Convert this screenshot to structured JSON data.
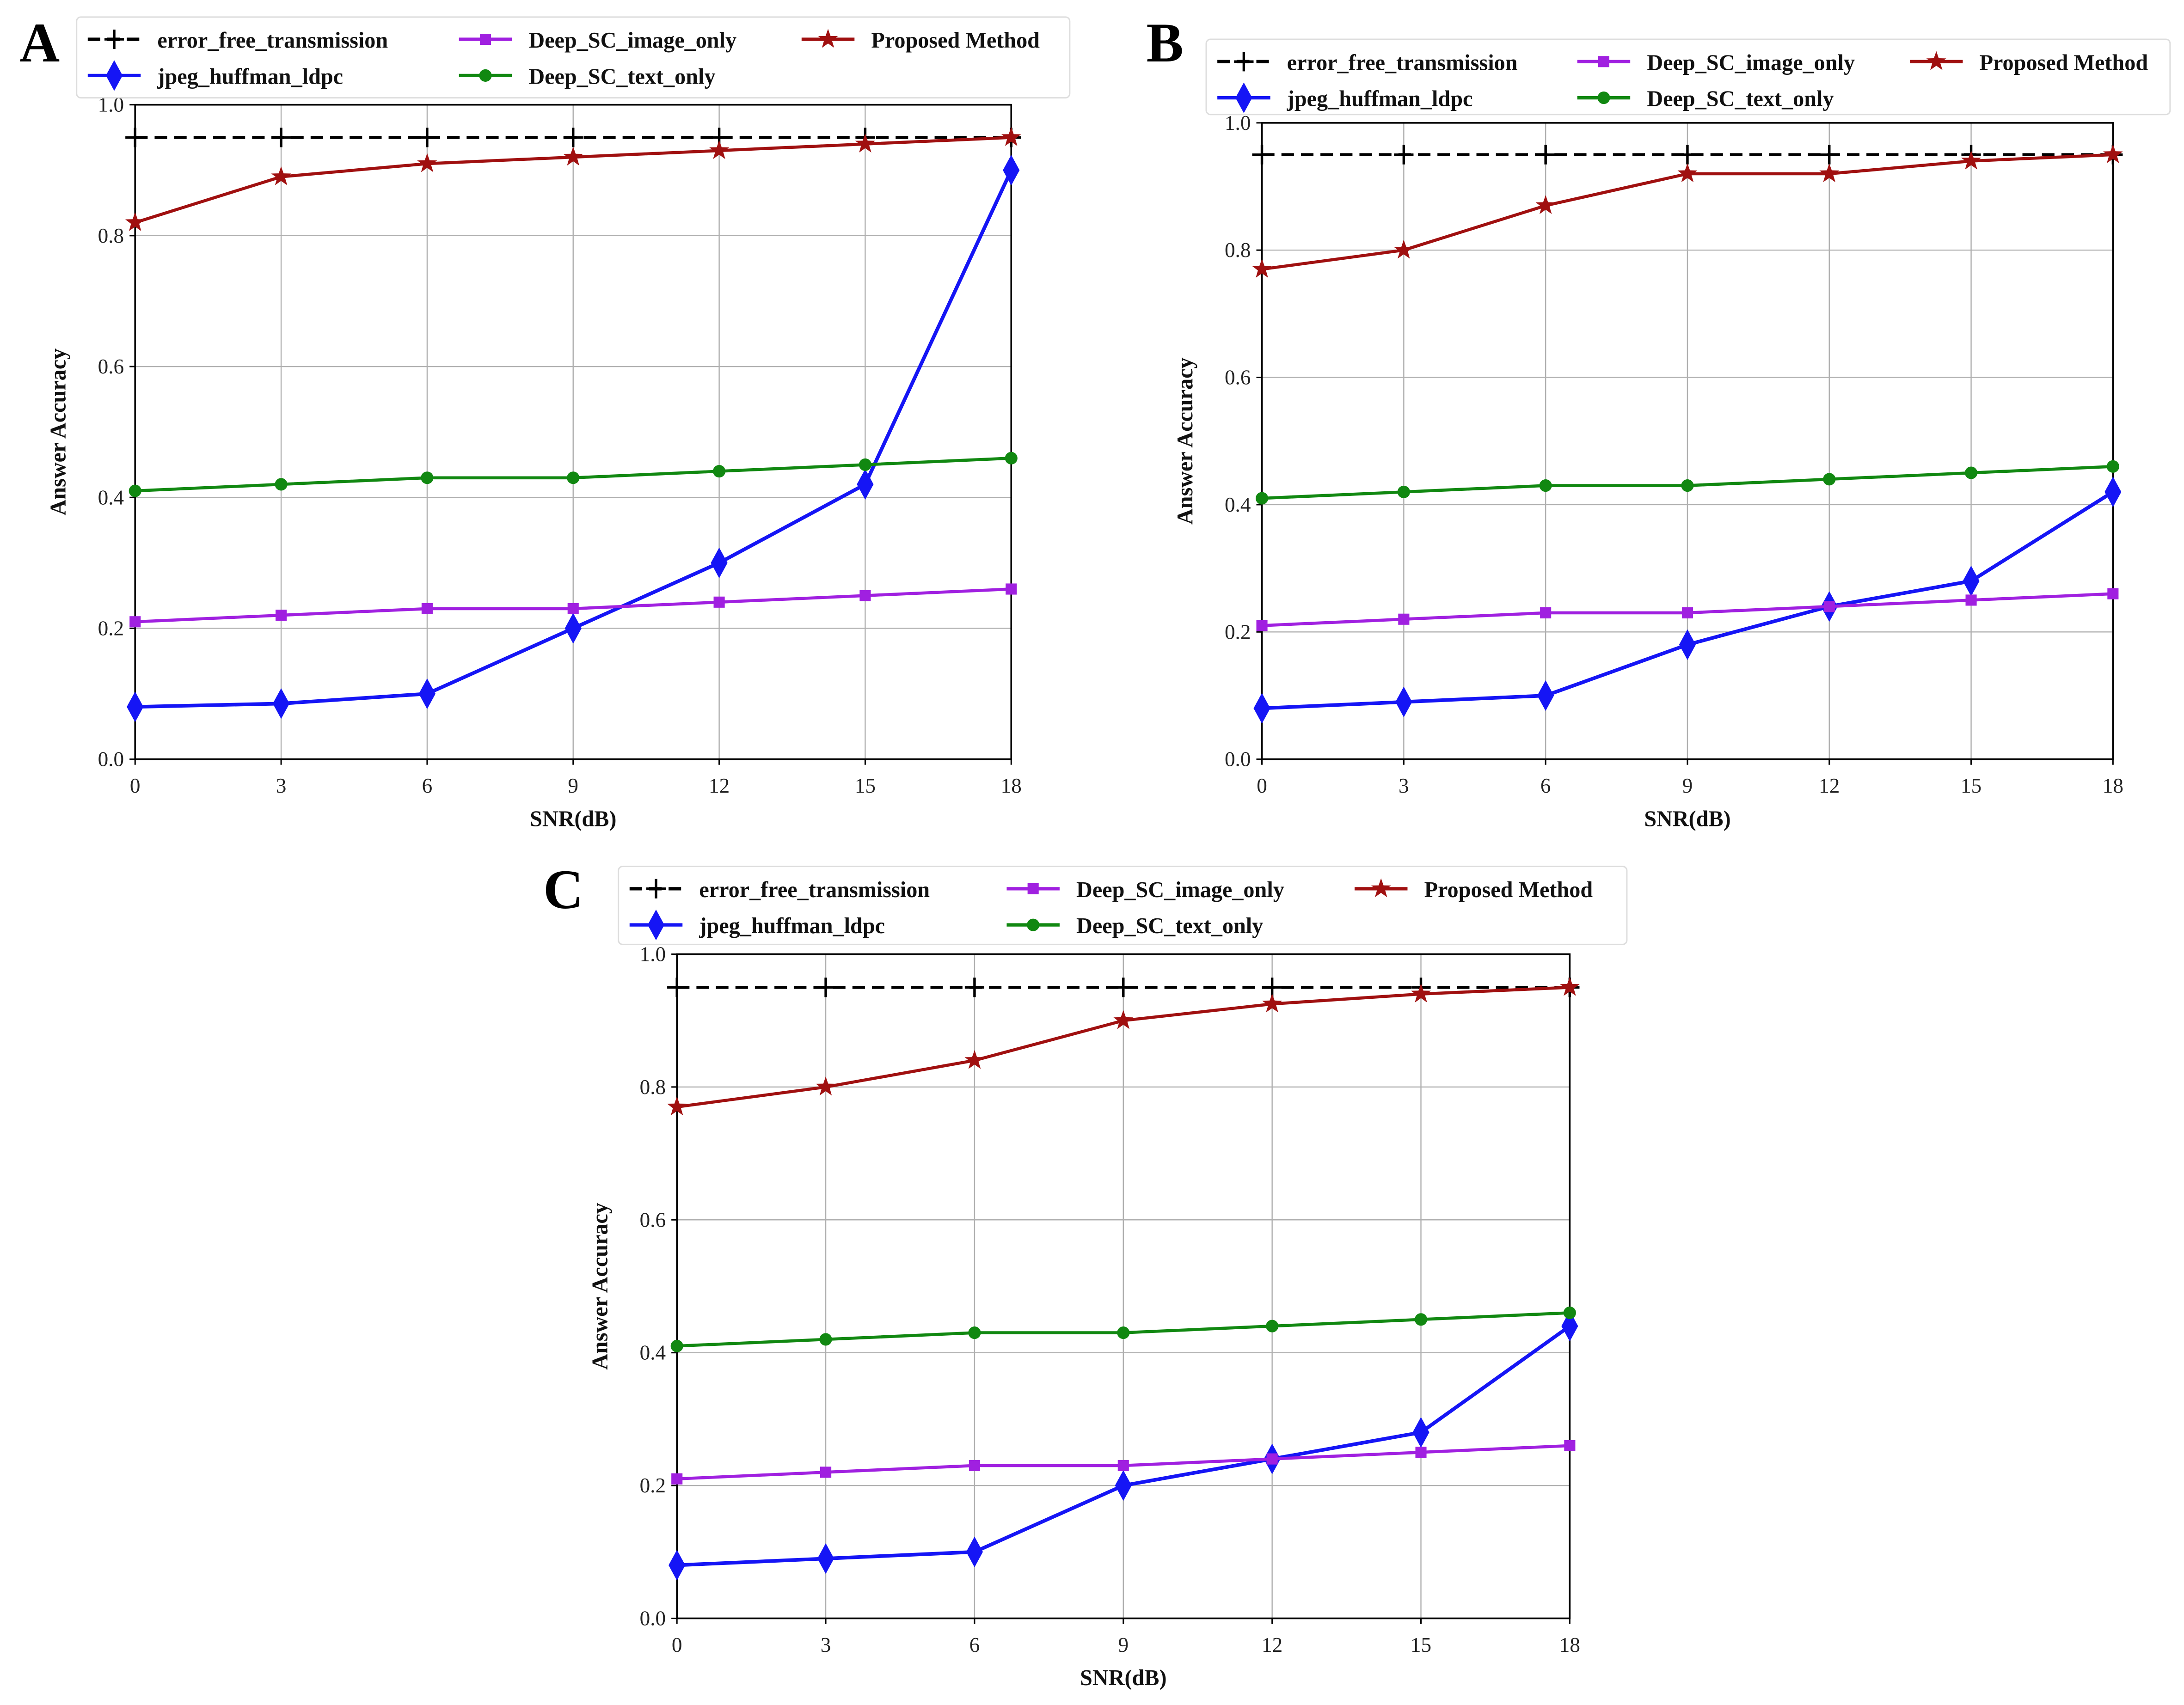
{
  "chart_data": [
    {
      "panel_label": "A",
      "type": "line",
      "xlabel": "SNR(dB)",
      "ylabel": "Answer Accuracy",
      "x": [
        0,
        3,
        6,
        9,
        12,
        15,
        18
      ],
      "xticks": [
        "0",
        "3",
        "6",
        "9",
        "12",
        "15",
        "18"
      ],
      "yticks": [
        "0.0",
        "0.2",
        "0.4",
        "0.6",
        "0.8",
        "1.0"
      ],
      "xlim": [
        0,
        18
      ],
      "ylim": [
        0,
        1.0
      ],
      "grid": true,
      "legend_position": "top",
      "series": [
        {
          "name": "error_free_transmission",
          "color": "#000000",
          "marker": "plus",
          "dashed": true,
          "values": [
            0.95,
            0.95,
            0.95,
            0.95,
            0.95,
            0.95,
            0.95
          ]
        },
        {
          "name": "jpeg_huffman_ldpc",
          "color": "#1515f5",
          "marker": "diamond",
          "values": [
            0.08,
            0.085,
            0.1,
            0.2,
            0.3,
            0.42,
            0.9
          ]
        },
        {
          "name": "Deep_SC_image_only",
          "color": "#a020e0",
          "marker": "square",
          "values": [
            0.21,
            0.22,
            0.23,
            0.23,
            0.24,
            0.25,
            0.26
          ]
        },
        {
          "name": "Deep_SC_text_only",
          "color": "#118811",
          "marker": "circle",
          "values": [
            0.41,
            0.42,
            0.43,
            0.43,
            0.44,
            0.45,
            0.46
          ]
        },
        {
          "name": "Proposed Method",
          "color": "#a01010",
          "marker": "star",
          "values": [
            0.82,
            0.89,
            0.91,
            0.92,
            0.93,
            0.94,
            0.95
          ]
        }
      ]
    },
    {
      "panel_label": "B",
      "type": "line",
      "xlabel": "SNR(dB)",
      "ylabel": "Answer Accuracy",
      "x": [
        0,
        3,
        6,
        9,
        12,
        15,
        18
      ],
      "xticks": [
        "0",
        "3",
        "6",
        "9",
        "12",
        "15",
        "18"
      ],
      "yticks": [
        "0.0",
        "0.2",
        "0.4",
        "0.6",
        "0.8",
        "1.0"
      ],
      "xlim": [
        0,
        18
      ],
      "ylim": [
        0,
        1.0
      ],
      "grid": true,
      "legend_position": "top",
      "series": [
        {
          "name": "error_free_transmission",
          "color": "#000000",
          "marker": "plus",
          "dashed": true,
          "values": [
            0.95,
            0.95,
            0.95,
            0.95,
            0.95,
            0.95,
            0.95
          ]
        },
        {
          "name": "jpeg_huffman_ldpc",
          "color": "#1515f5",
          "marker": "diamond",
          "values": [
            0.08,
            0.09,
            0.1,
            0.18,
            0.24,
            0.28,
            0.42
          ]
        },
        {
          "name": "Deep_SC_image_only",
          "color": "#a020e0",
          "marker": "square",
          "values": [
            0.21,
            0.22,
            0.23,
            0.23,
            0.24,
            0.25,
            0.26
          ]
        },
        {
          "name": "Deep_SC_text_only",
          "color": "#118811",
          "marker": "circle",
          "values": [
            0.41,
            0.42,
            0.43,
            0.43,
            0.44,
            0.45,
            0.46
          ]
        },
        {
          "name": "Proposed Method",
          "color": "#a01010",
          "marker": "star",
          "values": [
            0.77,
            0.8,
            0.87,
            0.92,
            0.92,
            0.94,
            0.95
          ]
        }
      ]
    },
    {
      "panel_label": "C",
      "type": "line",
      "xlabel": "SNR(dB)",
      "ylabel": "Answer Accuracy",
      "x": [
        0,
        3,
        6,
        9,
        12,
        15,
        18
      ],
      "xticks": [
        "0",
        "3",
        "6",
        "9",
        "12",
        "15",
        "18"
      ],
      "yticks": [
        "0.0",
        "0.2",
        "0.4",
        "0.6",
        "0.8",
        "1.0"
      ],
      "xlim": [
        0,
        18
      ],
      "ylim": [
        0,
        1.0
      ],
      "grid": true,
      "legend_position": "top",
      "series": [
        {
          "name": "error_free_transmission",
          "color": "#000000",
          "marker": "plus",
          "dashed": true,
          "values": [
            0.95,
            0.95,
            0.95,
            0.95,
            0.95,
            0.95,
            0.95
          ]
        },
        {
          "name": "jpeg_huffman_ldpc",
          "color": "#1515f5",
          "marker": "diamond",
          "values": [
            0.08,
            0.09,
            0.1,
            0.2,
            0.24,
            0.28,
            0.44
          ]
        },
        {
          "name": "Deep_SC_image_only",
          "color": "#a020e0",
          "marker": "square",
          "values": [
            0.21,
            0.22,
            0.23,
            0.23,
            0.24,
            0.25,
            0.26
          ]
        },
        {
          "name": "Deep_SC_text_only",
          "color": "#118811",
          "marker": "circle",
          "values": [
            0.41,
            0.42,
            0.43,
            0.43,
            0.44,
            0.45,
            0.46
          ]
        },
        {
          "name": "Proposed Method",
          "color": "#a01010",
          "marker": "star",
          "values": [
            0.77,
            0.8,
            0.84,
            0.9,
            0.925,
            0.94,
            0.95
          ]
        }
      ]
    }
  ]
}
